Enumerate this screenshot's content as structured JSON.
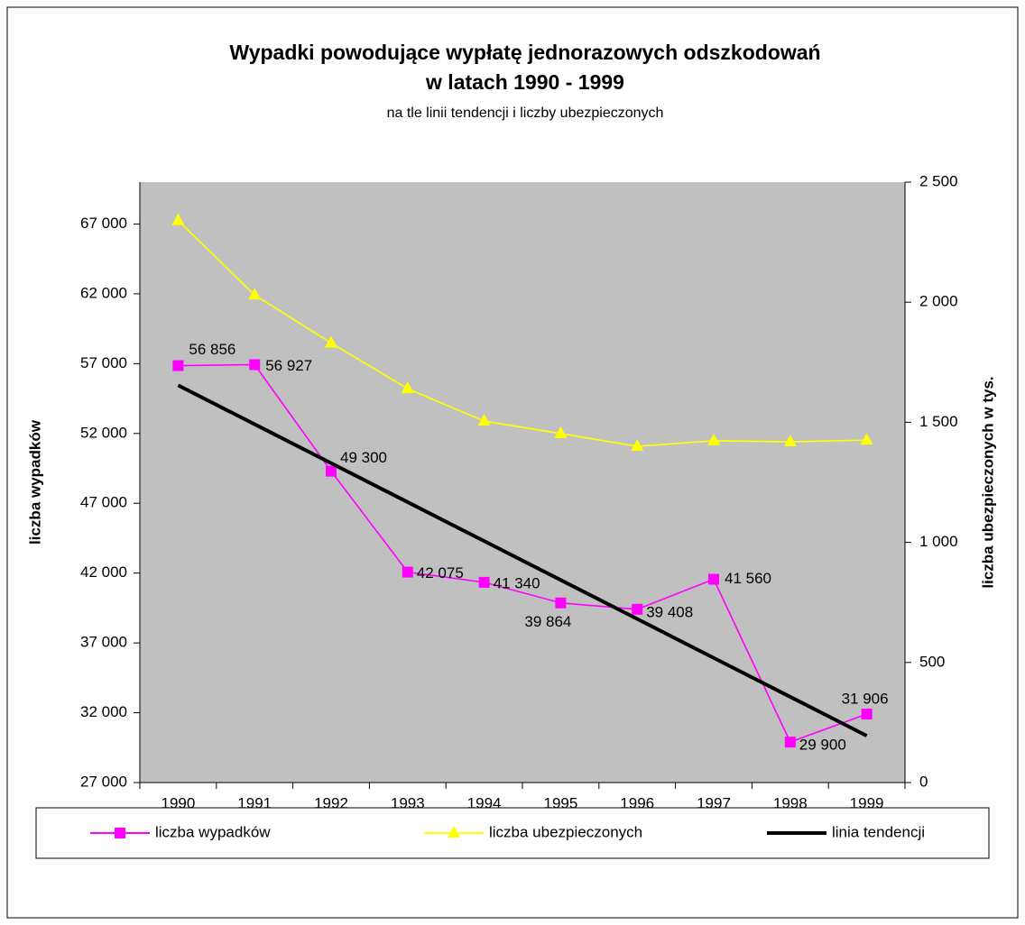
{
  "chart_data": {
    "type": "line",
    "title": [
      "Wypadki powodujące wypłatę jednorazowych odszkodowań",
      "w latach 1990 - 1999"
    ],
    "subtitle": "na tle linii tendencji i liczby ubezpieczonych",
    "y_label": "liczba wypadków",
    "y2_label": "liczba ubezpieczonych w tys.",
    "categories": [
      "1990",
      "1991",
      "1992",
      "1993",
      "1994",
      "1995",
      "1996",
      "1997",
      "1998",
      "1999"
    ],
    "ylim": [
      27000,
      70000
    ],
    "yticks": [
      {
        "value": 27000,
        "label": "27 000"
      },
      {
        "value": 32000,
        "label": "32 000"
      },
      {
        "value": 37000,
        "label": "37 000"
      },
      {
        "value": 42000,
        "label": "42 000"
      },
      {
        "value": 47000,
        "label": "47 000"
      },
      {
        "value": 52000,
        "label": "52 000"
      },
      {
        "value": 57000,
        "label": "57 000"
      },
      {
        "value": 62000,
        "label": "62 000"
      },
      {
        "value": 67000,
        "label": "67 000"
      }
    ],
    "y2lim": [
      0,
      2500
    ],
    "y2ticks": [
      0,
      500,
      {
        "value": 1000,
        "label": "1 000"
      },
      {
        "value": 1500,
        "label": "1 500"
      },
      {
        "value": 2000,
        "label": "2 000"
      },
      {
        "value": 2500,
        "label": "2 500"
      }
    ],
    "grid": false,
    "series": [
      {
        "name": "liczba wypadków",
        "color": "#ff00ff",
        "marker": "square",
        "values": [
          56856,
          56927,
          49300,
          42075,
          41340,
          39864,
          39408,
          41560,
          29900,
          31906
        ],
        "value_labels": [
          "56 856",
          "56 927",
          "49 300",
          "42 075",
          "41 340",
          "39 864",
          "39 408",
          "41 560",
          "29 900",
          "31 906"
        ]
      },
      {
        "name": "liczba ubezpieczonych",
        "color": "#ffff00",
        "marker": "triangle",
        "axis": "y2",
        "values": [
          2340,
          2030,
          1830,
          1640,
          1505,
          1453,
          1400,
          1423,
          1419,
          1426
        ]
      },
      {
        "name": "linia tendencji",
        "color": "#000000",
        "marker": "none",
        "values": [
          55450,
          52661,
          49872,
          47083,
          44294,
          41506,
          38717,
          35928,
          33139,
          30350
        ]
      }
    ]
  }
}
